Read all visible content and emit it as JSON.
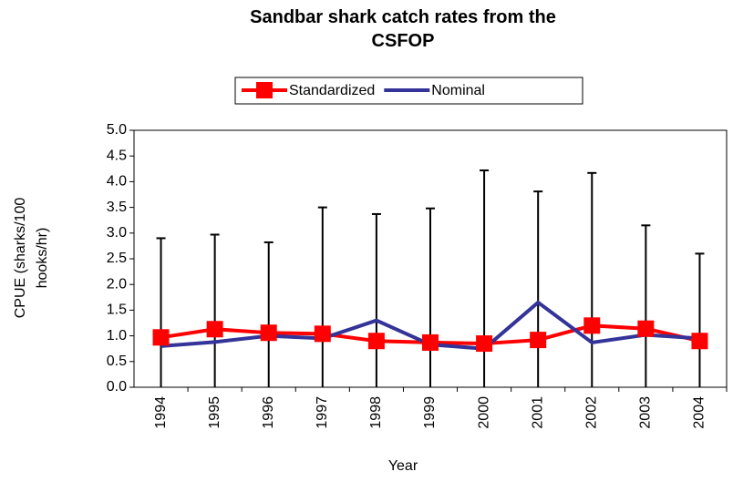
{
  "chart_data": {
    "type": "line",
    "title": "Sandbar shark catch rates from the CSFOP",
    "x_label": "Year",
    "y_label": "CPUE (sharks/100 hooks/hr)",
    "categories": [
      "1994",
      "1995",
      "1996",
      "1997",
      "1998",
      "1999",
      "2000",
      "2001",
      "2002",
      "2003",
      "2004"
    ],
    "series": [
      {
        "name": "Standardized",
        "color": "#ff0000",
        "marker": "square",
        "values": [
          0.97,
          1.13,
          1.06,
          1.04,
          0.9,
          0.87,
          0.85,
          0.92,
          1.2,
          1.14,
          0.9
        ],
        "upper": [
          2.9,
          2.97,
          2.82,
          3.5,
          3.37,
          3.48,
          4.22,
          3.81,
          4.17,
          3.15,
          2.6
        ],
        "lower": [
          0,
          0,
          0,
          0,
          0,
          0,
          0,
          0,
          0,
          0,
          0
        ]
      },
      {
        "name": "Nominal",
        "color": "#333399",
        "values": [
          0.8,
          0.88,
          1.0,
          0.95,
          1.3,
          0.83,
          0.75,
          1.65,
          0.87,
          1.02,
          0.95
        ]
      }
    ],
    "ylim": [
      0,
      5
    ],
    "yticks": [
      {
        "value": 0,
        "label": "0.0"
      },
      {
        "value": 0.5,
        "label": "0.5"
      },
      {
        "value": 1,
        "label": "1.0"
      },
      {
        "value": 1.5,
        "label": "1.5"
      },
      {
        "value": 2,
        "label": "2.0"
      },
      {
        "value": 2.5,
        "label": "2.5"
      },
      {
        "value": 3,
        "label": "3.0"
      },
      {
        "value": 3.5,
        "label": "3.5"
      },
      {
        "value": 4,
        "label": "4.0"
      },
      {
        "value": 4.5,
        "label": "4.5"
      },
      {
        "value": 5,
        "label": "5.0"
      }
    ],
    "legend": "top"
  }
}
